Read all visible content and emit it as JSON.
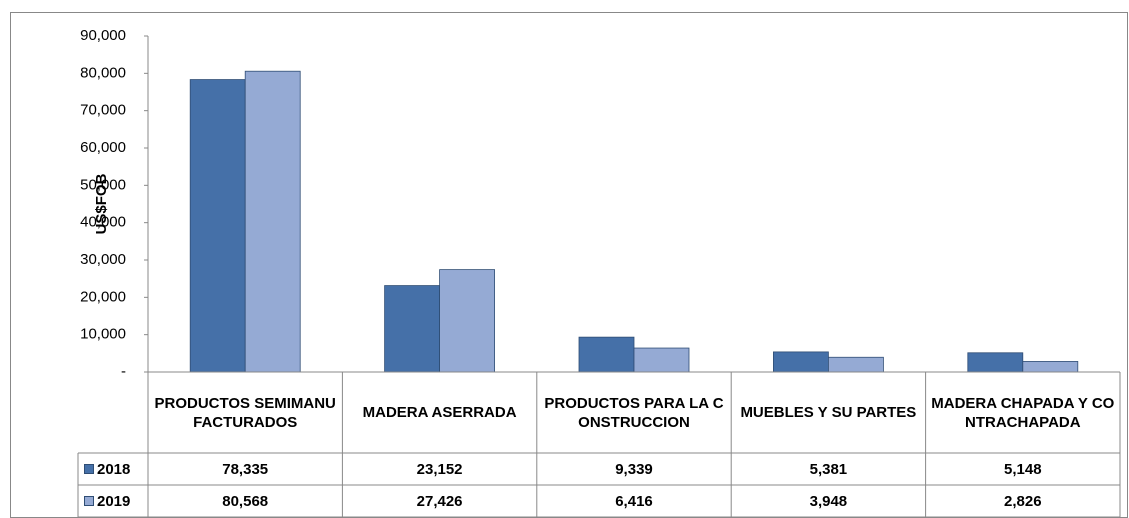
{
  "chart_data": {
    "type": "bar",
    "y_label": "US$FOB",
    "categories": [
      "PRODUCTOS SEMIMANUFACTURADOS",
      "MADERA ASERRADA",
      "PRODUCTOS PARA LA CONSTRUCCION",
      "MUEBLES Y SU PARTES",
      "MADERA CHAPADA Y CONTRACHAPADA"
    ],
    "series": [
      {
        "name": "2018",
        "color": "#4570a8",
        "values": [
          78335,
          23152,
          9339,
          5381,
          5148
        ],
        "value_labels": [
          "78,335",
          "23,152",
          "9,339",
          "5,381",
          "5,148"
        ]
      },
      {
        "name": "2019",
        "color": "#95aad4",
        "values": [
          80568,
          27426,
          6416,
          3948,
          2826
        ],
        "value_labels": [
          "80,568",
          "27,426",
          "6,416",
          "3,948",
          "2,826"
        ]
      }
    ],
    "ylim": [
      0,
      90000
    ],
    "yticks": [
      {
        "value": 0,
        "label": "-"
      },
      {
        "value": 10000,
        "label": "10,000"
      },
      {
        "value": 20000,
        "label": "20,000"
      },
      {
        "value": 30000,
        "label": "30,000"
      },
      {
        "value": 40000,
        "label": "40,000"
      },
      {
        "value": 50000,
        "label": "50,000"
      },
      {
        "value": 60000,
        "label": "60,000"
      },
      {
        "value": 70000,
        "label": "70,000"
      },
      {
        "value": 80000,
        "label": "80,000"
      },
      {
        "value": 90000,
        "label": "90,000"
      }
    ],
    "grid": false
  }
}
